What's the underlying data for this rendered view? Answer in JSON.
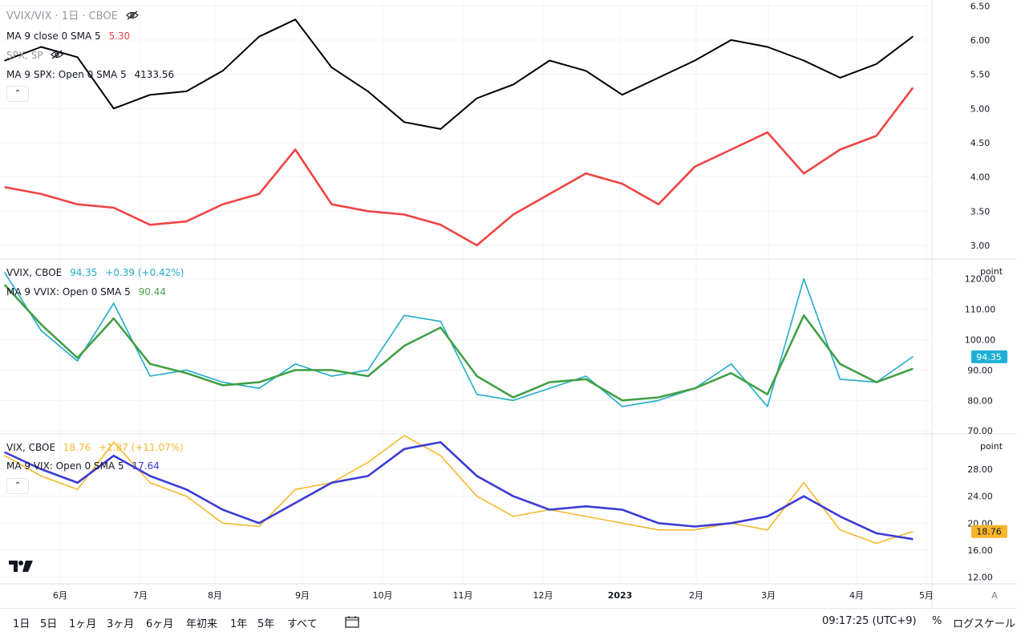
{
  "colors": {
    "ratio_line": "#000000",
    "ma_red": "#ef4444",
    "vvix_line": "#22abc9",
    "ma_green": "#43a047",
    "vix_line": "#f5b82e",
    "ma_blue": "#3b3bd6",
    "vvix_badge": "#1eb0d6",
    "vix_badge": "#f7b52c",
    "grid": "#f0f3fa",
    "separator": "#e0e3eb",
    "text": "#131722"
  },
  "pane1": {
    "title": "VVIX/VIX · 1日 · CBOE",
    "ma_label": "MA 9 close 0 SMA 5",
    "ma_value": "5.30",
    "spx_label": "SPX, SP",
    "spx_ma_label": "MA 9 SPX: Open 0 SMA 5",
    "spx_ma_value": "4133.56",
    "hidden_icon": "eye-off-icon",
    "collapse_icon": "chevron-up-icon"
  },
  "pane2": {
    "title": "VVIX, CBOE",
    "price": "94.35",
    "change": "+0.39 (+0.42%)",
    "ma_label": "MA 9 VVIX: Open 0 SMA 5",
    "ma_value": "90.44",
    "unit": "point",
    "badge": "94.35"
  },
  "pane3": {
    "title": "VIX, CBOE",
    "price": "18.76",
    "change": "+1.87 (+11.07%)",
    "ma_label": "MA 9 VIX: Open 0 SMA 5",
    "ma_value": "17.64",
    "unit": "point",
    "badge": "18.76",
    "collapse_icon": "chevron-up-icon"
  },
  "bottom": {
    "ranges": [
      "1日",
      "5日",
      "1ヶ月",
      "3ヶ月",
      "6ヶ月",
      "年初来",
      "1年",
      "5年",
      "すべて"
    ],
    "calendar_icon": "calendar-range-icon",
    "time": "09:17:25 (UTC+9)",
    "percent": "%",
    "log_scale": "ログスケール",
    "auto": "A",
    "logo_icon": "tradingview-logo-icon"
  },
  "chart_data": [
    {
      "type": "line",
      "pane": "VVIX/VIX ratio",
      "x": [
        "2022-05-09",
        "2022-05-23",
        "2022-06-06",
        "2022-06-20",
        "2022-07-04",
        "2022-07-18",
        "2022-08-01",
        "2022-08-15",
        "2022-08-29",
        "2022-09-12",
        "2022-09-26",
        "2022-10-10",
        "2022-10-24",
        "2022-11-07",
        "2022-11-21",
        "2022-12-05",
        "2022-12-19",
        "2023-01-02",
        "2023-01-16",
        "2023-01-30",
        "2023-02-13",
        "2023-02-27",
        "2023-03-13",
        "2023-03-27",
        "2023-04-10",
        "2023-04-24"
      ],
      "series": [
        {
          "name": "VVIX/VIX",
          "values": [
            5.7,
            5.9,
            5.75,
            5.0,
            5.2,
            5.25,
            5.55,
            6.05,
            6.3,
            5.6,
            5.25,
            4.8,
            4.7,
            5.15,
            5.35,
            5.7,
            5.55,
            5.2,
            5.45,
            5.7,
            6.0,
            5.9,
            5.7,
            5.45,
            5.65,
            6.05
          ]
        },
        {
          "name": "MA 9 close 0 SMA 5",
          "values": [
            3.85,
            3.75,
            3.6,
            3.55,
            3.3,
            3.35,
            3.6,
            3.75,
            4.4,
            3.6,
            3.5,
            3.45,
            3.3,
            3.0,
            3.45,
            3.75,
            4.05,
            3.9,
            3.6,
            4.15,
            4.4,
            4.65,
            4.05,
            4.4,
            4.6,
            5.3
          ]
        }
      ],
      "y_ticks": [
        "6.50",
        "6.00",
        "5.50",
        "5.00",
        "4.50",
        "4.00",
        "3.50",
        "3.00"
      ],
      "ylim": [
        2.8,
        6.55
      ]
    },
    {
      "type": "line",
      "pane": "VVIX",
      "x": [
        "2022-05-09",
        "2022-05-23",
        "2022-06-06",
        "2022-06-20",
        "2022-07-04",
        "2022-07-18",
        "2022-08-01",
        "2022-08-15",
        "2022-08-29",
        "2022-09-12",
        "2022-09-26",
        "2022-10-10",
        "2022-10-24",
        "2022-11-07",
        "2022-11-21",
        "2022-12-05",
        "2022-12-19",
        "2023-01-02",
        "2023-01-16",
        "2023-01-30",
        "2023-02-13",
        "2023-02-27",
        "2023-03-13",
        "2023-03-27",
        "2023-04-10",
        "2023-04-24"
      ],
      "series": [
        {
          "name": "VVIX",
          "values": [
            122,
            103,
            93,
            112,
            88,
            90,
            86,
            84,
            92,
            88,
            90,
            108,
            106,
            82,
            80,
            84,
            88,
            78,
            80,
            84,
            92,
            78,
            120,
            87,
            86,
            94.35
          ]
        },
        {
          "name": "MA 9 VVIX: Open 0 SMA 5",
          "values": [
            118,
            105,
            94,
            107,
            92,
            89,
            85,
            86,
            90,
            90,
            88,
            98,
            104,
            88,
            81,
            86,
            87,
            80,
            81,
            84,
            89,
            82,
            108,
            92,
            86,
            90.44
          ]
        }
      ],
      "y_ticks": [
        "120.00",
        "110.00",
        "100.00",
        "90.00",
        "80.00",
        "70.00"
      ],
      "ylim": [
        69,
        126
      ]
    },
    {
      "type": "line",
      "pane": "VIX",
      "x": [
        "2022-05-09",
        "2022-05-23",
        "2022-06-06",
        "2022-06-20",
        "2022-07-04",
        "2022-07-18",
        "2022-08-01",
        "2022-08-15",
        "2022-08-29",
        "2022-09-12",
        "2022-09-26",
        "2022-10-10",
        "2022-10-24",
        "2022-11-07",
        "2022-11-21",
        "2022-12-05",
        "2022-12-19",
        "2023-01-02",
        "2023-01-16",
        "2023-01-30",
        "2023-02-13",
        "2023-02-27",
        "2023-03-13",
        "2023-03-27",
        "2023-04-10",
        "2023-04-24"
      ],
      "series": [
        {
          "name": "VIX",
          "values": [
            30,
            27,
            25,
            32,
            26,
            24,
            20,
            19.5,
            25,
            26,
            29,
            33,
            30,
            24,
            21,
            22,
            21,
            20,
            19,
            19,
            20,
            19,
            26,
            19,
            17,
            18.76
          ]
        },
        {
          "name": "MA 9 VIX: Open 0 SMA 5",
          "values": [
            30.5,
            28,
            26,
            30,
            27,
            25,
            22,
            20,
            23,
            26,
            27,
            31,
            32,
            27,
            24,
            22,
            22.5,
            22,
            20,
            19.5,
            20,
            21,
            24,
            21,
            18.5,
            17.64
          ]
        }
      ],
      "y_ticks": [
        "28.00",
        "24.00",
        "20.00",
        "16.00",
        "12.00"
      ],
      "ylim": [
        11,
        33
      ]
    }
  ],
  "x_axis_ticks": [
    "6月",
    "7月",
    "8月",
    "9月",
    "10月",
    "11月",
    "12月",
    "2023",
    "2月",
    "3月",
    "4月",
    "5月"
  ]
}
